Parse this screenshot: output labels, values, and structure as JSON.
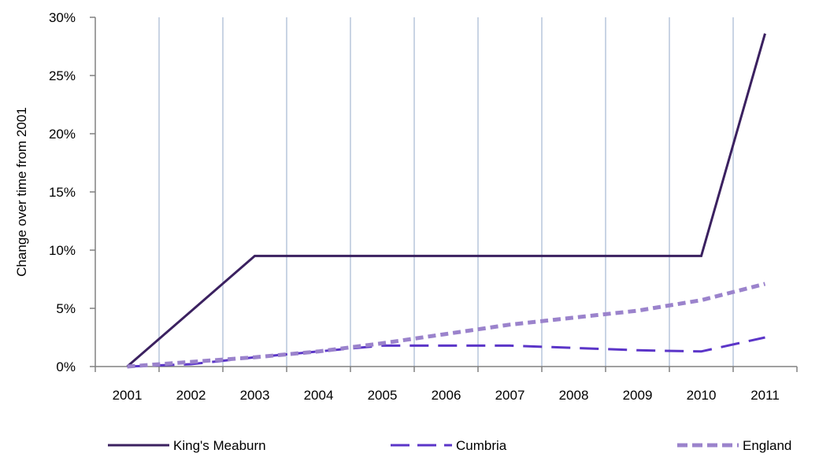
{
  "chart_data": {
    "type": "line",
    "title": "",
    "xlabel": "",
    "ylabel": "Change over  time from 2001",
    "categories": [
      "2001",
      "2002",
      "2003",
      "2004",
      "2005",
      "2006",
      "2007",
      "2008",
      "2009",
      "2010",
      "2011"
    ],
    "y_ticks": [
      "0%",
      "5%",
      "10%",
      "15%",
      "20%",
      "25%",
      "30%"
    ],
    "ylim": [
      0,
      30
    ],
    "y_unit": "%",
    "grid": "vertical",
    "legend_position": "bottom",
    "series": [
      {
        "name": "King's Meaburn",
        "color": "#3b2160",
        "style": "solid",
        "values": [
          0,
          4.75,
          9.5,
          9.5,
          9.5,
          9.5,
          9.5,
          9.5,
          9.5,
          9.5,
          28.6
        ]
      },
      {
        "name": "Cumbria",
        "color": "#5b35c8",
        "style": "long-dash",
        "values": [
          0,
          0.2,
          0.8,
          1.3,
          1.8,
          1.8,
          1.8,
          1.6,
          1.4,
          1.3,
          2.5
        ]
      },
      {
        "name": "England",
        "color": "#9b83cc",
        "style": "short-dash",
        "values": [
          0,
          0.4,
          0.8,
          1.3,
          2.0,
          2.8,
          3.6,
          4.2,
          4.8,
          5.7,
          7.1
        ]
      }
    ]
  }
}
